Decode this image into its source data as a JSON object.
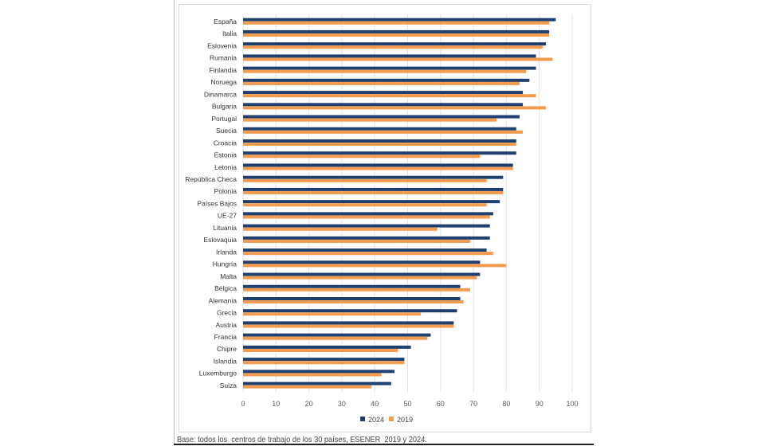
{
  "chart_data": {
    "type": "bar",
    "orientation": "horizontal",
    "categories": [
      "España",
      "Italia",
      "Eslovenia",
      "Rumania",
      "Finlandia",
      "Noruega",
      "Dinamarca",
      "Bulgaria",
      "Portugal",
      "Suecia",
      "Croacia",
      "Estonia",
      "Letonia",
      "República Checa",
      "Polonia",
      "Países Bajos",
      "UE-27",
      "Lituania",
      "Eslovaquia",
      "Irlanda",
      "Hungría",
      "Malta",
      "Bélgica",
      "Alemania",
      "Grecia",
      "Austria",
      "Francia",
      "Chipre",
      "Islandia",
      "Luxemburgo",
      "Suiza"
    ],
    "series": [
      {
        "name": "2024",
        "color": "#1f3f6e",
        "values": [
          95,
          93,
          92,
          89,
          89,
          87,
          85,
          85,
          84,
          83,
          83,
          83,
          82,
          79,
          79,
          78,
          76,
          75,
          75,
          74,
          72,
          72,
          66,
          66,
          65,
          64,
          57,
          51,
          49,
          46,
          45
        ]
      },
      {
        "name": "2019",
        "color": "#f39c4f",
        "values": [
          93,
          93,
          91,
          94,
          86,
          84,
          89,
          92,
          77,
          85,
          83,
          72,
          82,
          74,
          79,
          74,
          75,
          59,
          69,
          76,
          80,
          71,
          69,
          67,
          54,
          64,
          56,
          47,
          49,
          42,
          39
        ]
      }
    ],
    "xlim": [
      0,
      100
    ],
    "xticks": [
      "0",
      "10",
      "20",
      "30",
      "40",
      "50",
      "60",
      "70",
      "80",
      "90",
      "100"
    ],
    "grid": true,
    "legend": "bottom",
    "title": "",
    "xlabel": "",
    "ylabel": ""
  },
  "footer": "Base: todos los  centros de trabajo de los 30 países, ESENER  2019 y 2024."
}
